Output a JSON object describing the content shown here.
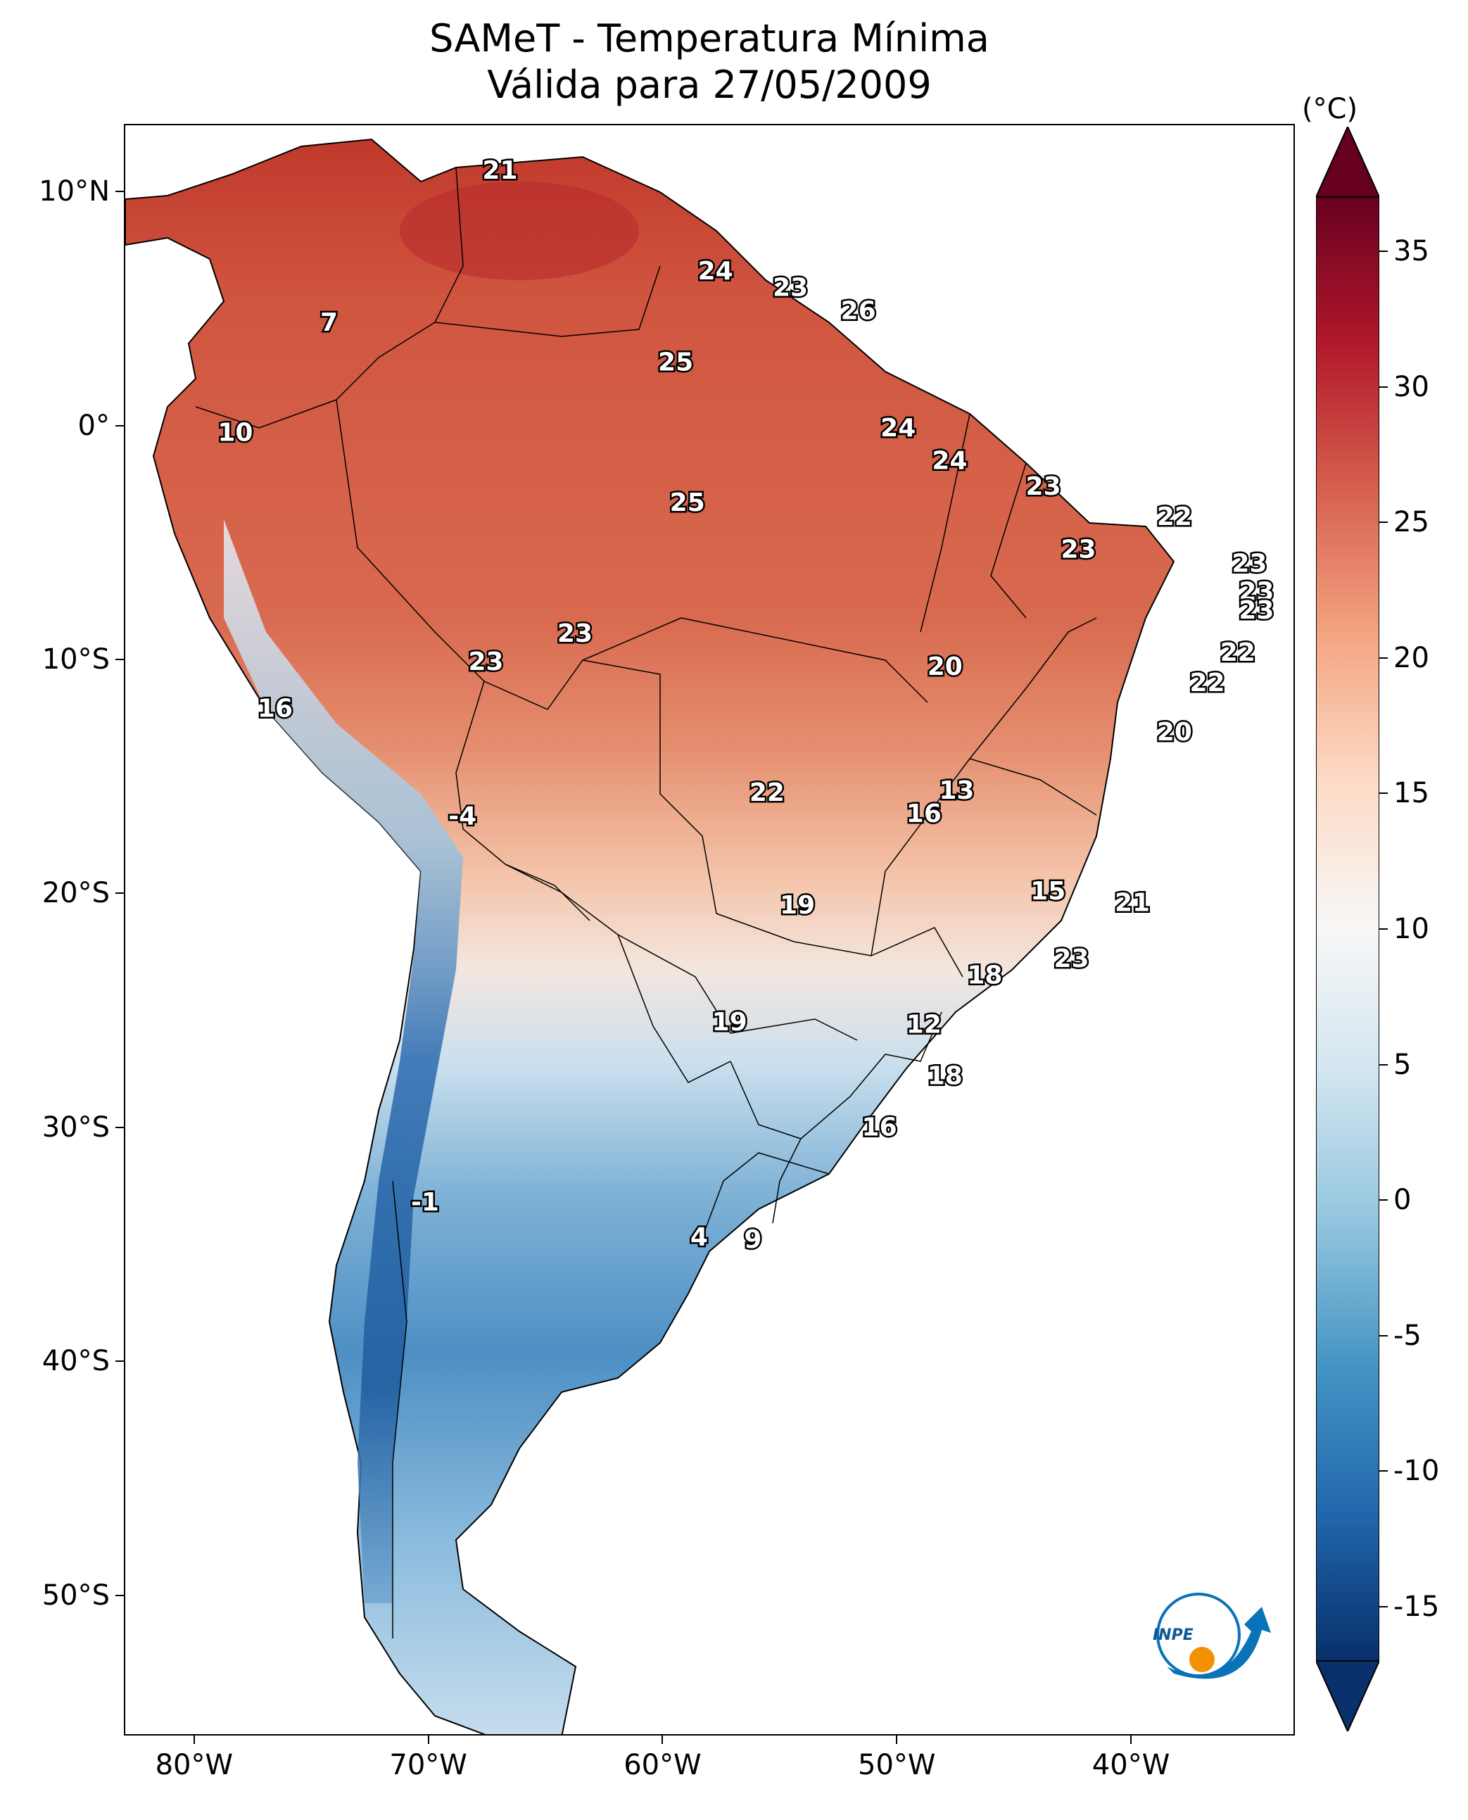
{
  "title_line1": "SAMeT - Temperatura Mínima",
  "title_line2": "Válida para 27/05/2009",
  "longitude_ticks": [
    "80°W",
    "70°W",
    "60°W",
    "50°W",
    "40°W"
  ],
  "latitude_ticks": [
    "10°N",
    "0°",
    "10°S",
    "20°S",
    "30°S",
    "40°S",
    "50°S"
  ],
  "colorbar": {
    "unit": "(°C)",
    "ticks": [
      "35",
      "30",
      "25",
      "20",
      "15",
      "10",
      "5",
      "0",
      "-5",
      "-10",
      "-15"
    ],
    "range_min": -17,
    "range_max": 37,
    "colors": [
      "#08306b",
      "#2166ac",
      "#4393c3",
      "#92c5de",
      "#d1e5f0",
      "#f7f7f7",
      "#fddbc7",
      "#f4a582",
      "#d6604d",
      "#b2182b",
      "#67001f"
    ]
  },
  "point_labels": [
    {
      "text": "21",
      "lon": -67.0,
      "lat": 11.0
    },
    {
      "text": "7",
      "lon": -74.3,
      "lat": 4.5
    },
    {
      "text": "24",
      "lon": -57.8,
      "lat": 6.7
    },
    {
      "text": "23",
      "lon": -54.6,
      "lat": 6.0
    },
    {
      "text": "26",
      "lon": -51.7,
      "lat": 5.0
    },
    {
      "text": "25",
      "lon": -59.5,
      "lat": 2.8
    },
    {
      "text": "10",
      "lon": -78.3,
      "lat": -0.2
    },
    {
      "text": "24",
      "lon": -50.0,
      "lat": 0.0
    },
    {
      "text": "24",
      "lon": -47.8,
      "lat": -1.4
    },
    {
      "text": "23",
      "lon": -43.8,
      "lat": -2.5
    },
    {
      "text": "22",
      "lon": -38.2,
      "lat": -3.8
    },
    {
      "text": "25",
      "lon": -59.0,
      "lat": -3.2
    },
    {
      "text": "23",
      "lon": -42.3,
      "lat": -5.2
    },
    {
      "text": "23",
      "lon": -35.0,
      "lat": -5.8
    },
    {
      "text": "23",
      "lon": -34.7,
      "lat": -7.0
    },
    {
      "text": "23",
      "lon": -34.7,
      "lat": -7.8
    },
    {
      "text": "22",
      "lon": -35.5,
      "lat": -9.6
    },
    {
      "text": "22",
      "lon": -36.8,
      "lat": -10.9
    },
    {
      "text": "23",
      "lon": -63.8,
      "lat": -8.8
    },
    {
      "text": "23",
      "lon": -67.6,
      "lat": -10.0
    },
    {
      "text": "20",
      "lon": -48.0,
      "lat": -10.2
    },
    {
      "text": "16",
      "lon": -76.6,
      "lat": -12.0
    },
    {
      "text": "20",
      "lon": -38.2,
      "lat": -13.0
    },
    {
      "text": "13",
      "lon": -47.5,
      "lat": -15.5
    },
    {
      "text": "16",
      "lon": -48.9,
      "lat": -16.5
    },
    {
      "text": "22",
      "lon": -55.6,
      "lat": -15.6
    },
    {
      "text": "-4",
      "lon": -68.6,
      "lat": -16.6
    },
    {
      "text": "15",
      "lon": -43.6,
      "lat": -19.8
    },
    {
      "text": "21",
      "lon": -40.0,
      "lat": -20.3
    },
    {
      "text": "19",
      "lon": -54.3,
      "lat": -20.4
    },
    {
      "text": "23",
      "lon": -42.6,
      "lat": -22.7
    },
    {
      "text": "18",
      "lon": -46.3,
      "lat": -23.4
    },
    {
      "text": "19",
      "lon": -57.2,
      "lat": -25.4
    },
    {
      "text": "12",
      "lon": -48.9,
      "lat": -25.5
    },
    {
      "text": "18",
      "lon": -48.0,
      "lat": -27.7
    },
    {
      "text": "16",
      "lon": -50.8,
      "lat": -29.9
    },
    {
      "text": "-1",
      "lon": -70.2,
      "lat": -33.1
    },
    {
      "text": "4",
      "lon": -58.5,
      "lat": -34.6
    },
    {
      "text": "9",
      "lon": -56.2,
      "lat": -34.7
    }
  ]
}
